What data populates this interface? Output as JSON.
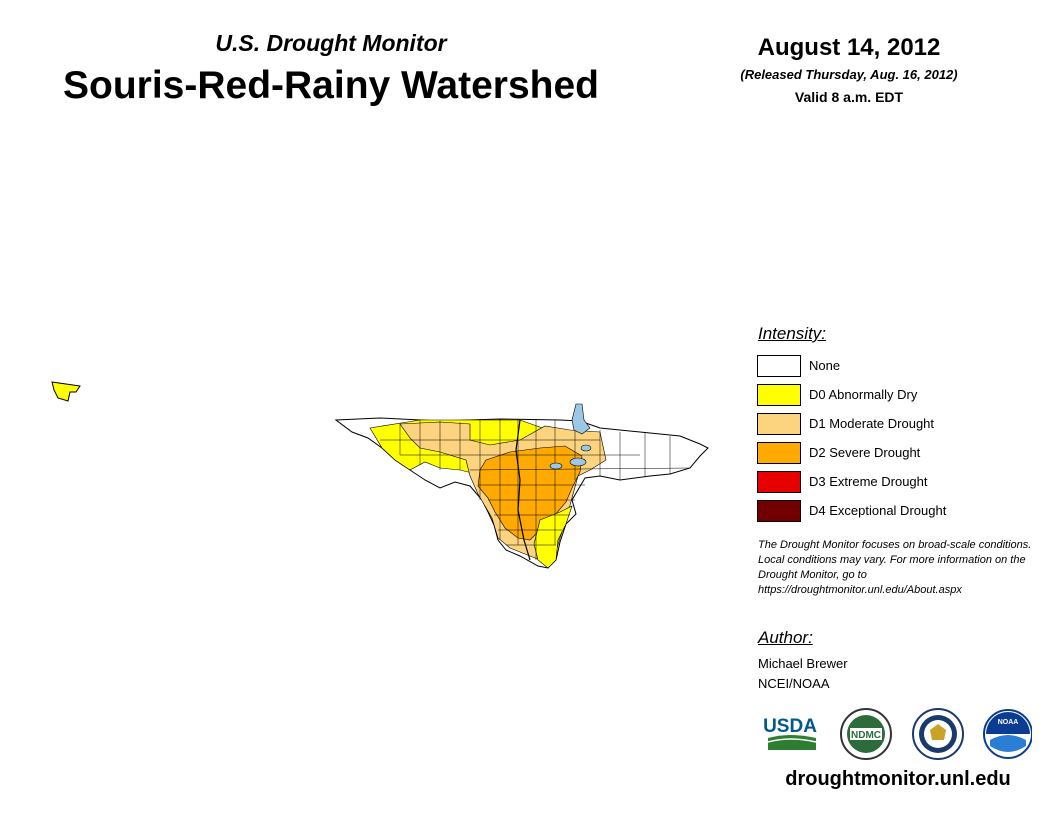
{
  "header": {
    "subtitle": "U.S. Drought Monitor",
    "title": "Souris-Red-Rainy Watershed",
    "date": "August 14, 2012",
    "released": "(Released Thursday, Aug. 16, 2012)",
    "valid": "Valid 8 a.m. EDT"
  },
  "legend": {
    "heading": "Intensity:",
    "items": [
      {
        "label": "None",
        "color": "#ffffff"
      },
      {
        "label": "D0 Abnormally Dry",
        "color": "#ffff00"
      },
      {
        "label": "D1 Moderate Drought",
        "color": "#fcd37f"
      },
      {
        "label": "D2 Severe Drought",
        "color": "#ffaa00"
      },
      {
        "label": "D3 Extreme Drought",
        "color": "#e60000"
      },
      {
        "label": "D4 Exceptional Drought",
        "color": "#730000"
      }
    ]
  },
  "note": "The Drought Monitor focuses on broad-scale conditions. Local conditions may vary. For more information on the Drought Monitor, go to https://droughtmonitor.unl.edu/About.aspx",
  "author": {
    "heading": "Author:",
    "name": "Michael Brewer",
    "org": "NCEI/NOAA"
  },
  "logos": {
    "usda": "USDA",
    "ndmc": "NDMC",
    "noaa": "NOAA"
  },
  "website": "droughtmonitor.unl.edu",
  "map_colors": {
    "none": "#ffffff",
    "d0": "#ffff00",
    "d1": "#fcd37f",
    "d2": "#ffaa00",
    "water": "#9cc8e8"
  }
}
